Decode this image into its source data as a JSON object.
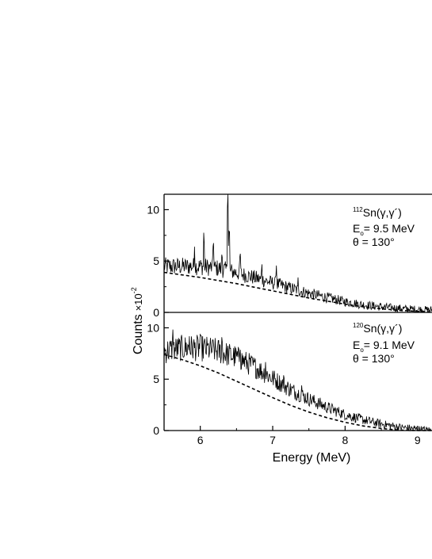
{
  "chart_data": [
    {
      "type": "line",
      "panel": "top",
      "annotation": {
        "isotope_mass": "112",
        "reaction": "Sn(γ,γ´)",
        "energy_symbol": "E",
        "energy_subscript": "o",
        "energy_value": "= 9.5 MeV",
        "angle": "θ = 130°"
      },
      "xlim": [
        5.5,
        9.2
      ],
      "ylim": [
        0,
        11.5
      ],
      "yticks": [
        0,
        5,
        10
      ],
      "series": [
        {
          "style": "solid",
          "x": [
            5.5,
            5.75,
            6.0,
            6.25,
            6.5,
            6.75,
            7.0,
            7.25,
            7.5,
            7.75,
            8.0,
            8.25,
            8.5,
            8.75,
            9.0,
            9.2
          ],
          "values": [
            4.4,
            4.4,
            4.4,
            4.2,
            3.8,
            3.3,
            2.8,
            2.3,
            1.8,
            1.4,
            1.0,
            0.7,
            0.5,
            0.35,
            0.25,
            0.2
          ]
        },
        {
          "style": "dashed",
          "x": [
            5.5,
            5.75,
            6.0,
            6.25,
            6.5,
            6.75,
            7.0,
            7.25,
            7.5,
            7.75,
            8.0,
            8.25,
            8.5,
            8.75,
            9.0,
            9.2
          ],
          "values": [
            3.9,
            3.65,
            3.4,
            3.1,
            2.8,
            2.45,
            2.1,
            1.75,
            1.4,
            1.1,
            0.8,
            0.55,
            0.35,
            0.2,
            0.1,
            0.05
          ]
        }
      ],
      "peaks": [
        {
          "x": 5.62,
          "y": 5.0
        },
        {
          "x": 5.92,
          "y": 6.4
        },
        {
          "x": 6.05,
          "y": 8.0
        },
        {
          "x": 6.18,
          "y": 7.2
        },
        {
          "x": 6.3,
          "y": 6.0
        },
        {
          "x": 6.38,
          "y": 12.0
        },
        {
          "x": 6.4,
          "y": 8.6
        },
        {
          "x": 6.55,
          "y": 6.1
        },
        {
          "x": 6.85,
          "y": 4.8
        },
        {
          "x": 7.05,
          "y": 4.6
        },
        {
          "x": 7.35,
          "y": 3.4
        }
      ]
    },
    {
      "type": "line",
      "panel": "bottom",
      "annotation": {
        "isotope_mass": "120",
        "reaction": "Sn(γ,γ´)",
        "energy_symbol": "E",
        "energy_subscript": "o",
        "energy_value": "= 9.1 MeV",
        "angle": "θ = 130°"
      },
      "xlim": [
        5.5,
        9.2
      ],
      "ylim": [
        0,
        11.5
      ],
      "yticks": [
        0,
        5,
        10
      ],
      "xticks": [
        6,
        7,
        8,
        9
      ],
      "series": [
        {
          "style": "solid",
          "x": [
            5.5,
            5.75,
            6.0,
            6.25,
            6.5,
            6.75,
            7.0,
            7.25,
            7.5,
            7.75,
            8.0,
            8.25,
            8.5,
            8.75,
            9.0,
            9.2
          ],
          "values": [
            7.6,
            7.9,
            7.9,
            7.6,
            7.0,
            6.1,
            5.0,
            3.9,
            3.0,
            2.2,
            1.5,
            1.0,
            0.6,
            0.3,
            0.1,
            0.0
          ]
        },
        {
          "style": "dashed",
          "x": [
            5.5,
            5.75,
            6.0,
            6.25,
            6.5,
            6.75,
            7.0,
            7.25,
            7.5,
            7.75,
            8.0,
            8.25,
            8.5,
            8.75,
            9.0,
            9.2
          ],
          "values": [
            7.4,
            6.9,
            6.3,
            5.6,
            4.8,
            4.0,
            3.2,
            2.45,
            1.8,
            1.25,
            0.8,
            0.45,
            0.2,
            0.05,
            0.0,
            0.0
          ]
        }
      ],
      "peaks": [
        {
          "x": 5.62,
          "y": 9.9
        },
        {
          "x": 5.85,
          "y": 9.3
        },
        {
          "x": 6.0,
          "y": 9.6
        },
        {
          "x": 6.3,
          "y": 9.7
        },
        {
          "x": 6.55,
          "y": 8.4
        },
        {
          "x": 6.9,
          "y": 6.8
        },
        {
          "x": 7.15,
          "y": 5.4
        },
        {
          "x": 7.4,
          "y": 4.4
        }
      ]
    }
  ],
  "axes": {
    "xlabel": "Energy (MeV)",
    "ylabel_main": "Counts",
    "ylabel_times": "×",
    "ylabel_base": "10",
    "ylabel_exp": "-2"
  }
}
